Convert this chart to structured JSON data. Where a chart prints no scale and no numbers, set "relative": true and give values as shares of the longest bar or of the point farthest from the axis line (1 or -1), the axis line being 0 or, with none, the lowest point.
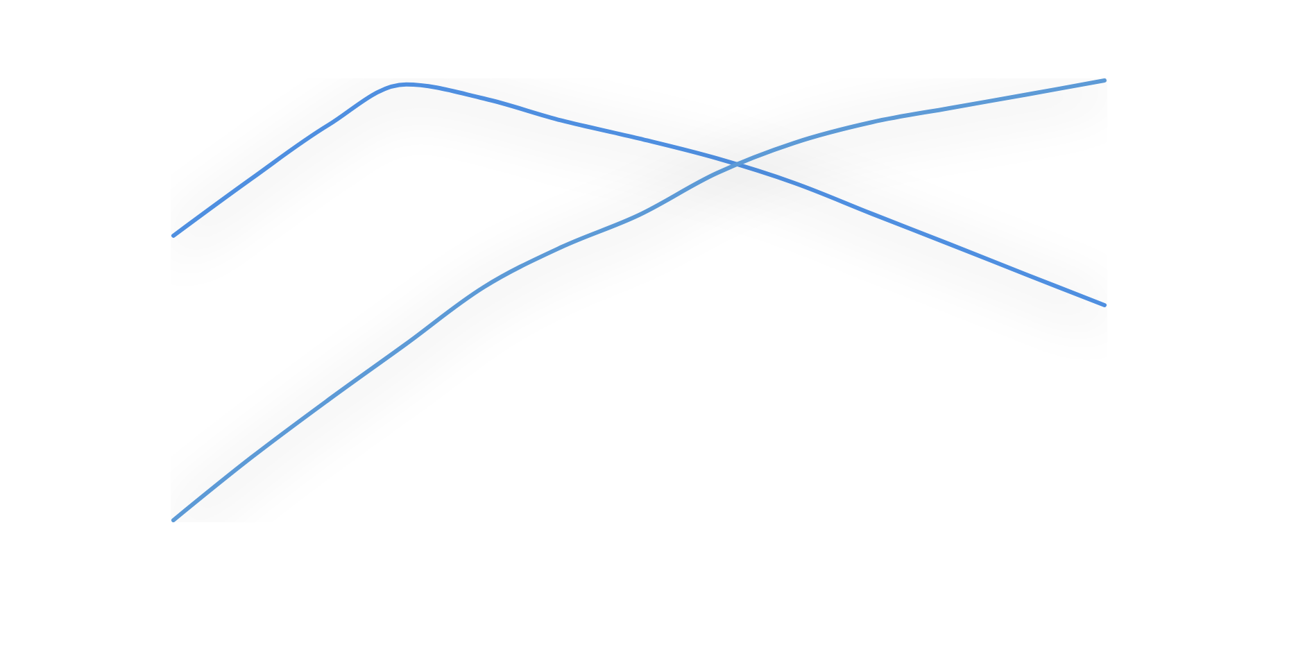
{
  "chart_data": {
    "type": "line",
    "relative": true,
    "categories": [
      null,
      null,
      null,
      null,
      null,
      null,
      null,
      null,
      null,
      null,
      null,
      null,
      null
    ],
    "series": [
      {
        "color": "#4f8fe0",
        "values": [
          0.647,
          0.776,
          0.899,
          0.991,
          0.959,
          0.909,
          0.868,
          0.823,
          0.767,
          0.697,
          0.628,
          0.558,
          0.489
        ]
      },
      {
        "color": "#5d9ad6",
        "values": [
          0,
          0.142,
          0.274,
          0.401,
          0.53,
          0.621,
          0.694,
          0.789,
          0.858,
          0.905,
          0.937,
          0.968,
          1
        ]
      }
    ],
    "grid": false,
    "marker": "none",
    "line_style": "solid"
  }
}
